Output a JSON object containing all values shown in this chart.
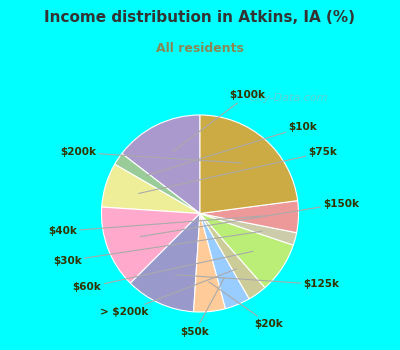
{
  "title": "Income distribution in Atkins, IA (%)",
  "subtitle": "All residents",
  "title_color": "#333333",
  "subtitle_color": "#888855",
  "bg_outer": "#00ffff",
  "bg_inner_color": "#d4ede0",
  "watermark": "City-Data.com",
  "labels": [
    "$100k",
    "$10k",
    "$75k",
    "$150k",
    "$125k",
    "$20k",
    "$50k",
    "> $200k",
    "$60k",
    "$30k",
    "$40k",
    "$200k"
  ],
  "sizes": [
    14,
    2,
    7,
    13,
    11,
    5,
    4,
    3,
    8,
    2,
    5,
    22
  ],
  "colors": [
    "#aa99cc",
    "#99cc99",
    "#eeee99",
    "#ffaacc",
    "#9999cc",
    "#ffcc99",
    "#99ccff",
    "#cccc99",
    "#bbee77",
    "#ccccaa",
    "#ee9999",
    "#ccaa44"
  ],
  "startangle": 90,
  "label_color": "#333300",
  "label_fontsize": 7.5,
  "line_color": "#aaaaaa"
}
